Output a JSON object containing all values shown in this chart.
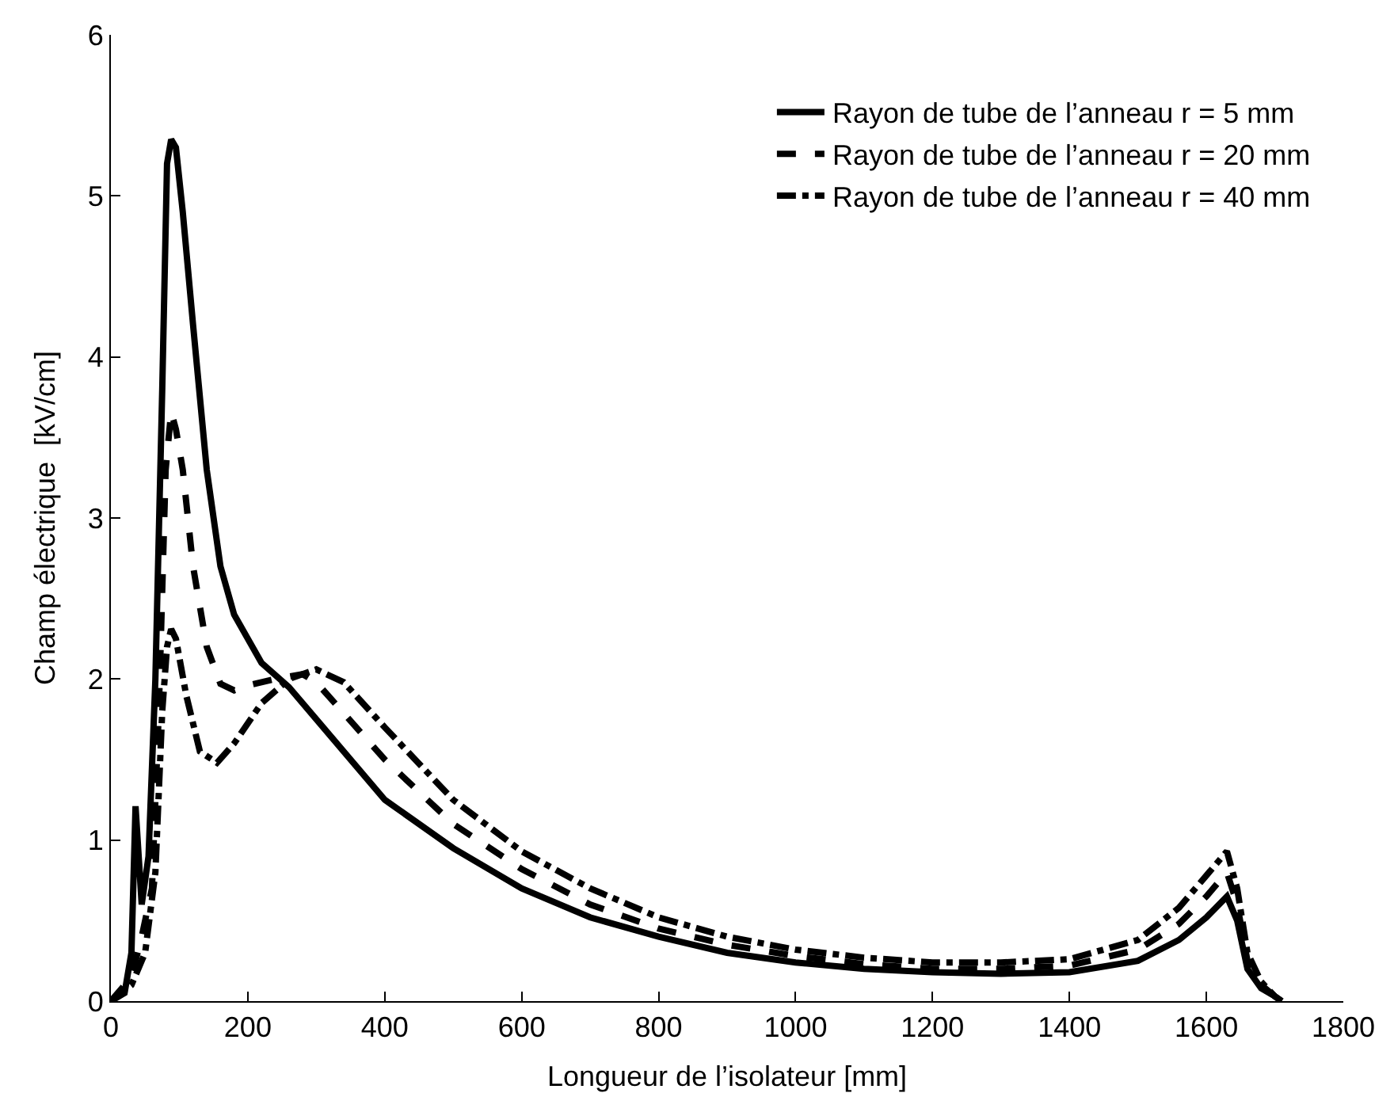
{
  "chart_data": {
    "type": "line",
    "xlabel": "Longueur de l’isolateur [mm]",
    "ylabel": "Champ électrique  [kV/cm]",
    "xlim": [
      0,
      1800
    ],
    "xticks": [
      0,
      200,
      400,
      600,
      800,
      1000,
      1200,
      1400,
      1600,
      1800
    ],
    "ylim": [
      0,
      6
    ],
    "yticks": [
      0,
      1,
      2,
      3,
      4,
      5,
      6
    ],
    "grid": false,
    "legend": "top right",
    "marker": "none",
    "series": [
      {
        "name": "Rayon de tube de l’anneau r = 5 mm",
        "color": "#000000",
        "line_style": "solid",
        "x": [
          0,
          20,
          30,
          36,
          45,
          55,
          65,
          75,
          82,
          88,
          95,
          105,
          120,
          140,
          160,
          180,
          220,
          260,
          300,
          400,
          500,
          600,
          700,
          800,
          900,
          1000,
          1100,
          1200,
          1300,
          1400,
          1500,
          1560,
          1600,
          1630,
          1645,
          1660,
          1680,
          1700,
          1710
        ],
        "values": [
          0,
          0.05,
          0.3,
          1.21,
          0.6,
          0.9,
          2.0,
          3.8,
          5.2,
          5.35,
          5.3,
          4.9,
          4.2,
          3.3,
          2.7,
          2.4,
          2.1,
          1.95,
          1.75,
          1.25,
          0.95,
          0.7,
          0.52,
          0.4,
          0.3,
          0.24,
          0.2,
          0.18,
          0.17,
          0.18,
          0.25,
          0.38,
          0.52,
          0.65,
          0.5,
          0.2,
          0.08,
          0.03,
          0
        ]
      },
      {
        "name": "Rayon de tube de l’anneau r = 20 mm",
        "color": "#000000",
        "line_style": "dashed",
        "x": [
          0,
          30,
          45,
          60,
          70,
          80,
          88,
          95,
          105,
          120,
          140,
          160,
          180,
          200,
          240,
          280,
          300,
          400,
          500,
          600,
          700,
          800,
          900,
          1000,
          1100,
          1200,
          1300,
          1400,
          1500,
          1560,
          1600,
          1630,
          1645,
          1660,
          1680,
          1700,
          1710
        ],
        "values": [
          0,
          0.15,
          0.4,
          0.7,
          1.8,
          3.3,
          3.66,
          3.55,
          3.3,
          2.7,
          2.2,
          1.97,
          1.93,
          1.96,
          2.0,
          2.03,
          1.98,
          1.5,
          1.1,
          0.82,
          0.6,
          0.45,
          0.35,
          0.28,
          0.23,
          0.2,
          0.2,
          0.22,
          0.32,
          0.48,
          0.65,
          0.8,
          0.6,
          0.25,
          0.1,
          0.03,
          0
        ]
      },
      {
        "name": "Rayon de tube de l’anneau r = 40 mm",
        "color": "#000000",
        "line_style": "dashdot",
        "x": [
          0,
          30,
          50,
          65,
          75,
          82,
          88,
          95,
          110,
          130,
          155,
          180,
          220,
          260,
          300,
          340,
          400,
          500,
          600,
          700,
          800,
          900,
          1000,
          1100,
          1200,
          1300,
          1400,
          1500,
          1560,
          1600,
          1630,
          1645,
          1660,
          1680,
          1700,
          1710
        ],
        "values": [
          0,
          0.1,
          0.3,
          0.8,
          1.8,
          2.2,
          2.31,
          2.25,
          1.9,
          1.55,
          1.48,
          1.6,
          1.85,
          2.0,
          2.06,
          1.98,
          1.7,
          1.25,
          0.93,
          0.7,
          0.52,
          0.4,
          0.32,
          0.27,
          0.24,
          0.24,
          0.26,
          0.38,
          0.58,
          0.78,
          0.93,
          0.7,
          0.3,
          0.12,
          0.03,
          0
        ]
      }
    ]
  }
}
